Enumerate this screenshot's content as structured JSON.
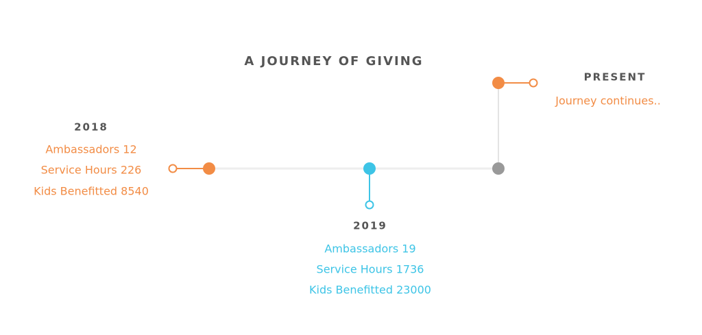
{
  "title": "A JOURNEY OF GIVING",
  "milestones": [
    {
      "year": "2018",
      "lines": [
        "Ambassadors 12",
        "Service Hours 226",
        "Kids Benefitted 8540"
      ]
    },
    {
      "year": "2019",
      "lines": [
        "Ambassadors 19",
        "Service Hours 1736",
        "Kids Benefitted 23000"
      ]
    },
    {
      "year": "PRESENT",
      "lines": [
        "Journey continues.."
      ]
    }
  ]
}
